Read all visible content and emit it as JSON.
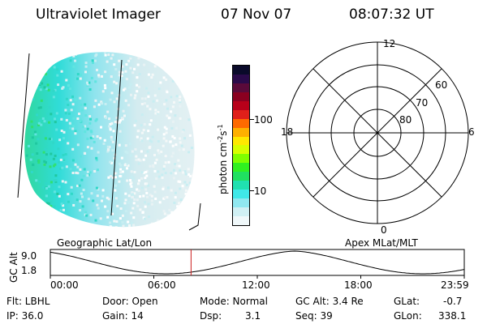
{
  "header": {
    "title": "Ultraviolet Imager",
    "date": "07 Nov 07",
    "time": "08:07:32 UT"
  },
  "colorbar": {
    "unit_label": "photon cm",
    "unit_sup1": "-2",
    "unit_mid": "s",
    "unit_sup2": "-1",
    "ticks": [
      "100",
      "10"
    ],
    "colors": [
      "#0a0a2a",
      "#2a0a4a",
      "#5a0a3a",
      "#8a0020",
      "#b8001a",
      "#e0201a",
      "#ff6a00",
      "#ffb000",
      "#ffe800",
      "#d8ff00",
      "#80ff00",
      "#30f020",
      "#20e060",
      "#20e0b0",
      "#40e8e8",
      "#90e8f0",
      "#d0f0f4",
      "#f0f8fa"
    ]
  },
  "polar_plot": {
    "labels_top": "12",
    "labels_left": "18",
    "labels_right": "6",
    "labels_bottom": "0",
    "lat_labels": [
      "60",
      "70",
      "80"
    ]
  },
  "timeline": {
    "left_title": "Geographic Lat/Lon",
    "right_title": "Apex MLat/MLT",
    "ylabel": "GC Alt",
    "y_ticks": [
      "9.0",
      "1.8"
    ],
    "x_ticks": [
      "00:00",
      "06:00",
      "12:00",
      "18:00",
      "23:59"
    ],
    "current_fraction": 0.34
  },
  "info": {
    "row1": {
      "flt": "Flt: LBHL",
      "door": "Door: Open",
      "mode": "Mode: Normal",
      "gcalt": "GC Alt: 3.4 Re",
      "glat_label": "GLat:",
      "glat_val": "-0.7"
    },
    "row2": {
      "ip": "IP: 36.0",
      "gain": "Gain: 14",
      "dsp_label": "Dsp:",
      "dsp_val": "3.1",
      "seq": "Seq: 39",
      "glon_label": "GLon:",
      "glon_val": "338.1"
    }
  }
}
